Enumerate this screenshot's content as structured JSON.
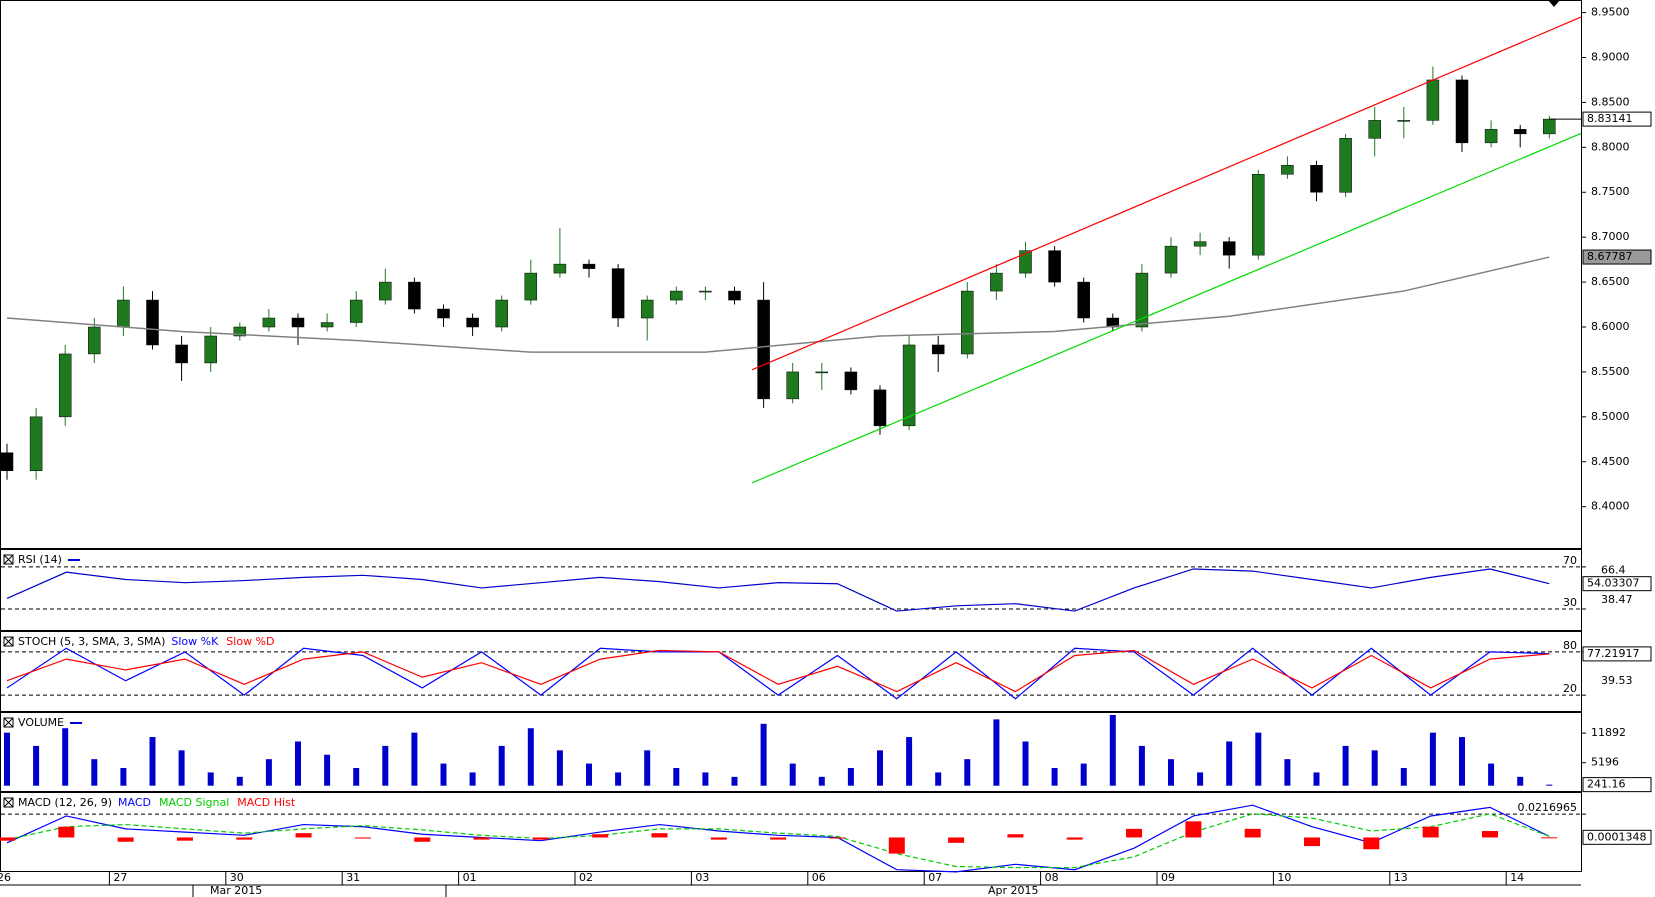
{
  "chart_data": [
    {
      "type": "candlestick",
      "ylim": [
        8.354,
        8.964
      ],
      "yticks": [
        {
          "value": 8.95,
          "label": "8.9500"
        },
        {
          "value": 8.9,
          "label": "8.9000"
        },
        {
          "value": 8.85,
          "label": "8.8500"
        },
        {
          "value": 8.8,
          "label": "8.8000"
        },
        {
          "value": 8.75,
          "label": "8.7500"
        },
        {
          "value": 8.7,
          "label": "8.7000"
        },
        {
          "value": 8.65,
          "label": "8.6500"
        },
        {
          "value": 8.6,
          "label": "8.6000"
        },
        {
          "value": 8.55,
          "label": "8.5500"
        },
        {
          "value": 8.5,
          "label": "8.5000"
        },
        {
          "value": 8.45,
          "label": "8.4500"
        },
        {
          "value": 8.4,
          "label": "8.4000"
        }
      ],
      "up_color": "#1f7a1f",
      "down_color": "#000000",
      "open": [
        8.46,
        8.44,
        8.5,
        8.57,
        8.6,
        8.63,
        8.58,
        8.56,
        8.59,
        8.6,
        8.61,
        8.6,
        8.605,
        8.63,
        8.65,
        8.62,
        8.61,
        8.6,
        8.63,
        8.66,
        8.67,
        8.665,
        8.61,
        8.63,
        8.64,
        8.64,
        8.63,
        8.52,
        8.55,
        8.55,
        8.53,
        8.49,
        8.58,
        8.57,
        8.64,
        8.66,
        8.685,
        8.65,
        8.61,
        8.6,
        8.66,
        8.69,
        8.695,
        8.68,
        8.77,
        8.78,
        8.75,
        8.81,
        8.83,
        8.83,
        8.875,
        8.805,
        8.82,
        8.815
      ],
      "high": [
        8.47,
        8.51,
        8.58,
        8.61,
        8.645,
        8.64,
        8.59,
        8.6,
        8.605,
        8.62,
        8.615,
        8.615,
        8.64,
        8.665,
        8.655,
        8.625,
        8.615,
        8.635,
        8.675,
        8.71,
        8.675,
        8.67,
        8.635,
        8.645,
        8.645,
        8.645,
        8.65,
        8.56,
        8.56,
        8.555,
        8.535,
        8.59,
        8.59,
        8.65,
        8.67,
        8.695,
        8.69,
        8.655,
        8.615,
        8.67,
        8.7,
        8.705,
        8.7,
        8.775,
        8.79,
        8.785,
        8.815,
        8.845,
        8.845,
        8.89,
        8.88,
        8.83,
        8.825,
        8.835
      ],
      "low": [
        8.43,
        8.43,
        8.49,
        8.56,
        8.59,
        8.575,
        8.54,
        8.55,
        8.585,
        8.595,
        8.58,
        8.595,
        8.6,
        8.625,
        8.615,
        8.6,
        8.59,
        8.595,
        8.625,
        8.655,
        8.655,
        8.6,
        8.585,
        8.625,
        8.63,
        8.625,
        8.51,
        8.515,
        8.53,
        8.525,
        8.48,
        8.485,
        8.55,
        8.565,
        8.63,
        8.655,
        8.645,
        8.605,
        8.595,
        8.595,
        8.655,
        8.68,
        8.665,
        8.675,
        8.765,
        8.74,
        8.745,
        8.79,
        8.81,
        8.825,
        8.795,
        8.8,
        8.8,
        8.81
      ],
      "close": [
        8.44,
        8.5,
        8.57,
        8.6,
        8.63,
        8.58,
        8.56,
        8.59,
        8.6,
        8.61,
        8.6,
        8.605,
        8.63,
        8.65,
        8.62,
        8.61,
        8.6,
        8.63,
        8.66,
        8.67,
        8.665,
        8.61,
        8.63,
        8.64,
        8.64,
        8.63,
        8.52,
        8.55,
        8.55,
        8.53,
        8.49,
        8.58,
        8.57,
        8.64,
        8.66,
        8.685,
        8.65,
        8.61,
        8.6,
        8.66,
        8.69,
        8.695,
        8.68,
        8.77,
        8.78,
        8.75,
        8.81,
        8.83,
        8.83,
        8.875,
        8.805,
        8.82,
        8.815,
        8.83141
      ],
      "sma": {
        "color": "#808080",
        "x": [
          0,
          6,
          12,
          18,
          24,
          30,
          36,
          42,
          48,
          53
        ],
        "values": [
          8.61,
          8.595,
          8.585,
          8.572,
          8.572,
          8.59,
          8.595,
          8.612,
          8.64,
          8.67787
        ]
      },
      "channel": [
        {
          "color": "#ff0000",
          "x": [
            25.6,
            54.2
          ],
          "values": [
            8.5523,
            8.9465
          ]
        },
        {
          "color": "#00dd00",
          "x": [
            25.6,
            54.2
          ],
          "values": [
            8.4265,
            8.817
          ]
        }
      ],
      "dates": [
        "26",
        "27",
        "30",
        "31",
        "01",
        "02",
        "03",
        "06",
        "07",
        "08",
        "09",
        "10",
        "13",
        "14"
      ],
      "months": [
        "Mar 2015",
        "Apr 2015"
      ]
    },
    {
      "type": "line",
      "title": "RSI (14)",
      "ylim": [
        10,
        87
      ],
      "yticks": [
        70,
        30
      ],
      "scale_labels": [
        66.4,
        38.47
      ],
      "series": [
        {
          "color": "#0000cc",
          "show_last": true,
          "values": [
            40,
            65,
            58,
            55,
            57,
            60,
            62,
            58,
            50,
            55,
            60,
            56,
            50,
            55,
            54,
            28,
            33,
            35,
            28,
            50,
            68,
            66,
            58,
            50,
            60,
            68,
            54.03307
          ]
        }
      ]
    },
    {
      "type": "line",
      "title": "STOCH (5, 3, SMA, 3, SMA)",
      "ylim": [
        -2,
        109
      ],
      "yticks": [
        80,
        20
      ],
      "scale_labels": [
        39.53
      ],
      "series": [
        {
          "name": "Slow %K",
          "color": "#0000ff",
          "values": [
            30,
            85,
            40,
            80,
            20,
            85,
            75,
            30,
            80,
            20,
            85,
            80,
            80,
            20,
            75,
            15,
            80,
            15,
            85,
            80,
            20,
            85,
            20,
            85,
            20,
            80,
            77.6
          ]
        },
        {
          "name": "Slow %D",
          "color": "#ff0000",
          "show_last": true,
          "values": [
            40,
            70,
            55,
            70,
            35,
            70,
            80,
            45,
            65,
            35,
            70,
            82,
            80,
            35,
            60,
            25,
            65,
            25,
            75,
            82,
            35,
            70,
            30,
            75,
            30,
            70,
            77.21917
          ]
        }
      ]
    },
    {
      "type": "bar",
      "title": "VOLUME",
      "ylim": [
        -1200,
        16670
      ],
      "yticks": [
        11892,
        5196
      ],
      "color": "#0000cc",
      "show_last": true,
      "values": [
        12000,
        9000,
        13000,
        6000,
        4000,
        11000,
        8000,
        3000,
        2000,
        6000,
        10000,
        7000,
        4000,
        9000,
        12000,
        5000,
        3000,
        9000,
        13000,
        8000,
        5000,
        3000,
        8000,
        4000,
        3000,
        2000,
        14000,
        5000,
        2000,
        4000,
        8000,
        11000,
        3000,
        6000,
        15000,
        10000,
        4000,
        5000,
        16000,
        9000,
        6000,
        3000,
        10000,
        12000,
        6000,
        3000,
        9000,
        8000,
        4000,
        12000,
        11000,
        5000,
        2000,
        241.16
      ]
    },
    {
      "type": "line",
      "title": "MACD (12, 26, 9)",
      "ylim": [
        -0.0312,
        0.0423
      ],
      "yticks": [
        0.0216965
      ],
      "series": [
        {
          "name": "MACD",
          "color": "#0000ff",
          "values": [
            -0.005,
            0.02,
            0.008,
            0.005,
            0.002,
            0.012,
            0.01,
            0.003,
            0.0,
            -0.003,
            0.005,
            0.012,
            0.006,
            0.002,
            0.0,
            -0.03,
            -0.032,
            -0.025,
            -0.03,
            -0.01,
            0.02,
            0.03,
            0.01,
            -0.005,
            0.02,
            0.028,
            0.001
          ]
        },
        {
          "name": "MACD Signal",
          "color": "#00cc00",
          "dash": true,
          "values": [
            -0.002,
            0.01,
            0.012,
            0.008,
            0.004,
            0.008,
            0.011,
            0.007,
            0.002,
            -0.001,
            0.002,
            0.008,
            0.008,
            0.004,
            0.001,
            -0.015,
            -0.027,
            -0.028,
            -0.028,
            -0.018,
            0.005,
            0.022,
            0.018,
            0.006,
            0.01,
            0.022,
            0.001
          ]
        },
        {
          "name": "MACD Hist",
          "color": "#ff0000",
          "style": "bar",
          "show_last": true,
          "values": [
            -0.003,
            0.01,
            -0.004,
            -0.003,
            -0.002,
            0.004,
            -0.001,
            -0.004,
            -0.002,
            -0.002,
            0.003,
            0.004,
            -0.002,
            -0.002,
            -0.001,
            -0.015,
            -0.005,
            0.003,
            -0.002,
            0.008,
            0.015,
            0.008,
            -0.008,
            -0.011,
            0.01,
            0.006,
            0.0001348
          ]
        }
      ]
    }
  ]
}
